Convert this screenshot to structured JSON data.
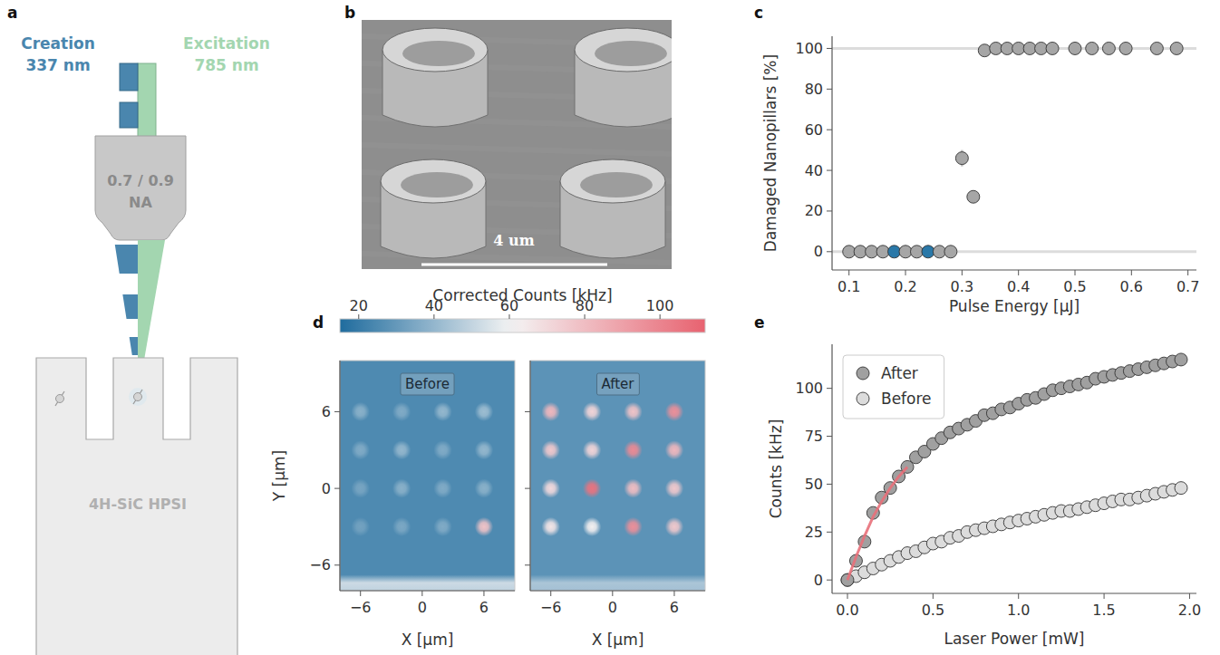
{
  "schematic": {
    "letter": "a",
    "creation_label": "Creation",
    "creation_wavelength": "337 nm",
    "excitation_label": "Excitation",
    "excitation_wavelength": "785 nm",
    "objective": "0.7 / 0.9",
    "objective_unit": "NA",
    "substrate": "4H-SiC HPSI"
  },
  "micrograph": {
    "letter": "b",
    "scale_bar": "4 um"
  },
  "chart_data": [
    {
      "type": "scatter",
      "letter": "c",
      "x_label": "Pulse Energy [µJ]",
      "y_label": "Damaged Nanopillars [%]",
      "xlim": [
        0.07,
        0.715
      ],
      "ylim": [
        -9,
        106
      ],
      "xticks": [
        0.1,
        0.2,
        0.3,
        0.4,
        0.5,
        0.6,
        0.7
      ],
      "yticks": [
        0,
        20,
        40,
        60,
        80,
        100
      ],
      "grid": false,
      "marker": "circle",
      "reference_lines": [
        0,
        100
      ],
      "x": [
        0.1,
        0.12,
        0.14,
        0.16,
        0.18,
        0.2,
        0.22,
        0.24,
        0.26,
        0.28,
        0.3,
        0.32,
        0.34,
        0.36,
        0.38,
        0.4,
        0.42,
        0.44,
        0.46,
        0.5,
        0.53,
        0.56,
        0.59,
        0.645,
        0.68
      ],
      "values": [
        0,
        0,
        0,
        0,
        0,
        0,
        0,
        0,
        0,
        0,
        46,
        27,
        99,
        100,
        100,
        100,
        100,
        100,
        100,
        100,
        100,
        100,
        100,
        100,
        100
      ],
      "errors": [
        0.5,
        0.5,
        0.5,
        0.5,
        0.5,
        0.5,
        0.5,
        0.5,
        0.5,
        0.5,
        4,
        3,
        1,
        0.5,
        0.5,
        0.5,
        0.5,
        0.5,
        0.5,
        0.5,
        0.5,
        0.5,
        0.5,
        0.5,
        0.5
      ],
      "colors": [
        "#a6a6a6",
        "#a6a6a6",
        "#a6a6a6",
        "#a6a6a6",
        "#2a78a8",
        "#a6a6a6",
        "#a6a6a6",
        "#2a78a8",
        "#a6a6a6",
        "#a6a6a6",
        "#a6a6a6",
        "#a6a6a6",
        "#a6a6a6",
        "#a6a6a6",
        "#a6a6a6",
        "#a6a6a6",
        "#a6a6a6",
        "#a6a6a6",
        "#a6a6a6",
        "#a6a6a6",
        "#a6a6a6",
        "#a6a6a6",
        "#a6a6a6",
        "#a6a6a6",
        "#a6a6a6"
      ]
    },
    {
      "type": "heatmap",
      "letter": "d",
      "title": "Before",
      "x_label": "X [µm]",
      "y_label": "Y [µm]",
      "xlim": [
        -8,
        9
      ],
      "ylim": [
        -8,
        10
      ],
      "xticks": [
        {
          "value": -6,
          "label": "−6"
        },
        0,
        6
      ],
      "yticks": [
        {
          "value": -6,
          "label": "−6"
        },
        0,
        6
      ],
      "background": 25,
      "edge": {
        "y": -7.6,
        "value": 52
      },
      "spots": {
        "x": [
          -6,
          -2,
          2,
          6,
          -6,
          -2,
          2,
          6,
          -6,
          -2,
          2,
          6,
          -6,
          -2,
          2,
          6
        ],
        "y": [
          6,
          6,
          6,
          6,
          3,
          3,
          3,
          3,
          0,
          0,
          0,
          0,
          -3,
          -3,
          -3,
          -3
        ],
        "values": [
          38,
          36,
          40,
          42,
          36,
          40,
          36,
          40,
          34,
          38,
          36,
          38,
          33,
          35,
          36,
          78
        ]
      },
      "colorbar": {
        "label": "Corrected Counts [kHz]",
        "range": [
          15,
          112
        ],
        "ticks": [
          20,
          40,
          60,
          80,
          100
        ]
      }
    },
    {
      "type": "heatmap",
      "title": "After",
      "x_label": "X [µm]",
      "xlim": [
        -8,
        9
      ],
      "ylim": [
        -8,
        10
      ],
      "xticks": [
        {
          "value": -6,
          "label": "−6"
        },
        0,
        6
      ],
      "yticks": [
        {
          "value": -6,
          "label": "−6"
        },
        0,
        6
      ],
      "tick_labels": "x",
      "background": 28,
      "edge": {
        "y": -7.6,
        "value": 45
      },
      "spots": {
        "x": [
          -6,
          -2,
          2,
          6,
          -6,
          -2,
          2,
          6,
          -6,
          -2,
          2,
          6,
          -6,
          -2,
          2,
          6
        ],
        "y": [
          6,
          6,
          6,
          6,
          3,
          3,
          3,
          3,
          0,
          0,
          0,
          0,
          -3,
          -3,
          -3,
          -3
        ],
        "values": [
          82,
          72,
          78,
          96,
          76,
          72,
          98,
          82,
          70,
          106,
          80,
          76,
          66,
          62,
          96,
          76
        ]
      }
    },
    {
      "type": "scatter",
      "letter": "e",
      "x_label": "Laser Power [mW]",
      "y_label": "Counts [kHz]",
      "xlim": [
        -0.09,
        2.04
      ],
      "ylim": [
        -7,
        123
      ],
      "xticks": [
        {
          "value": 0,
          "label": "0.0"
        },
        {
          "value": 0.5,
          "label": "0.5"
        },
        {
          "value": 1,
          "label": "1.0"
        },
        {
          "value": 1.5,
          "label": "1.5"
        },
        {
          "value": 2,
          "label": "2.0"
        }
      ],
      "yticks": [
        0,
        25,
        50,
        75,
        100
      ],
      "grid": false,
      "legend": "upper left",
      "marker": "circle",
      "series": [
        {
          "name": "After",
          "color": "#a0a0a0",
          "x": [
            0,
            0.05,
            0.1,
            0.15,
            0.2,
            0.25,
            0.3,
            0.35,
            0.4,
            0.45,
            0.5,
            0.55,
            0.6,
            0.65,
            0.7,
            0.75,
            0.8,
            0.85,
            0.9,
            0.95,
            1.0,
            1.05,
            1.1,
            1.15,
            1.2,
            1.25,
            1.3,
            1.35,
            1.4,
            1.45,
            1.5,
            1.55,
            1.6,
            1.65,
            1.7,
            1.75,
            1.8,
            1.85,
            1.9,
            1.95
          ],
          "values": [
            0,
            10,
            20,
            35,
            43,
            48,
            54,
            59,
            64,
            67,
            71,
            74,
            77,
            79,
            81,
            83,
            86,
            87,
            89,
            90,
            92,
            94,
            95,
            97,
            99,
            100,
            101,
            102,
            103,
            105,
            106,
            107,
            108,
            109,
            110,
            111,
            112,
            113,
            114,
            115
          ]
        },
        {
          "name": "Before",
          "color": "#dcdcdc",
          "x": [
            0,
            0.05,
            0.1,
            0.15,
            0.2,
            0.25,
            0.3,
            0.35,
            0.4,
            0.45,
            0.5,
            0.55,
            0.6,
            0.65,
            0.7,
            0.75,
            0.8,
            0.85,
            0.9,
            0.95,
            1.0,
            1.05,
            1.1,
            1.15,
            1.2,
            1.25,
            1.3,
            1.35,
            1.4,
            1.45,
            1.5,
            1.55,
            1.6,
            1.65,
            1.7,
            1.75,
            1.8,
            1.85,
            1.9,
            1.95
          ],
          "values": [
            0,
            2,
            4,
            6,
            8,
            10,
            12,
            14,
            15,
            17,
            19,
            20,
            22,
            23,
            25,
            26,
            27,
            28,
            29,
            30,
            31,
            32,
            33,
            34,
            35,
            36,
            36,
            37,
            38,
            39,
            40,
            41,
            42,
            42,
            43,
            44,
            45,
            46,
            47,
            48
          ]
        }
      ],
      "fit": {
        "color": "#e8707a",
        "x": [
          0,
          0.05,
          0.1,
          0.15,
          0.2,
          0.25,
          0.3,
          0.35
        ],
        "values": [
          0,
          12,
          23,
          33,
          41,
          48,
          54,
          59
        ]
      }
    }
  ]
}
